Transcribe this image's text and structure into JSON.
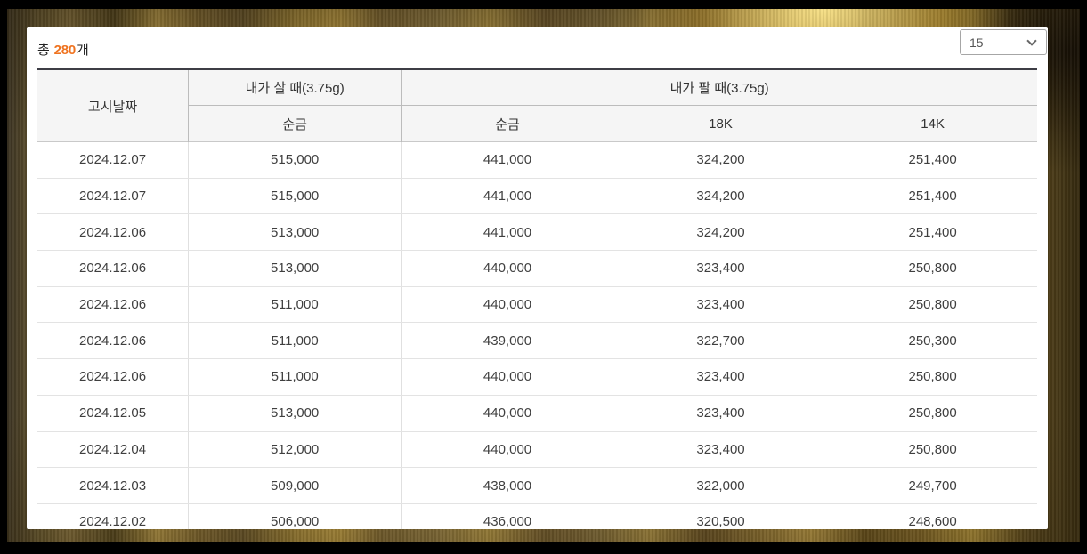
{
  "header": {
    "total_prefix": "총 ",
    "total_count": "280",
    "total_suffix": "개",
    "page_size": {
      "selected_value": "15",
      "chevron_icon": "chevron-down"
    }
  },
  "colors": {
    "accent_orange": "#ef7320",
    "table_top_border": "#3d3d45",
    "header_bg": "#f5f5f5"
  },
  "table": {
    "columns": {
      "date": "고시날짜",
      "buy_group": "내가 살 때(3.75g)",
      "sell_group": "내가 팔 때(3.75g)",
      "buy_pure": "순금",
      "sell_pure": "순금",
      "sell_18k": "18K",
      "sell_14k": "14K"
    },
    "rows": [
      {
        "date": "2024.12.07",
        "buy_pure": "515,000",
        "sell_pure": "441,000",
        "sell_18k": "324,200",
        "sell_14k": "251,400"
      },
      {
        "date": "2024.12.07",
        "buy_pure": "515,000",
        "sell_pure": "441,000",
        "sell_18k": "324,200",
        "sell_14k": "251,400"
      },
      {
        "date": "2024.12.06",
        "buy_pure": "513,000",
        "sell_pure": "441,000",
        "sell_18k": "324,200",
        "sell_14k": "251,400"
      },
      {
        "date": "2024.12.06",
        "buy_pure": "513,000",
        "sell_pure": "440,000",
        "sell_18k": "323,400",
        "sell_14k": "250,800"
      },
      {
        "date": "2024.12.06",
        "buy_pure": "511,000",
        "sell_pure": "440,000",
        "sell_18k": "323,400",
        "sell_14k": "250,800"
      },
      {
        "date": "2024.12.06",
        "buy_pure": "511,000",
        "sell_pure": "439,000",
        "sell_18k": "322,700",
        "sell_14k": "250,300"
      },
      {
        "date": "2024.12.06",
        "buy_pure": "511,000",
        "sell_pure": "440,000",
        "sell_18k": "323,400",
        "sell_14k": "250,800"
      },
      {
        "date": "2024.12.05",
        "buy_pure": "513,000",
        "sell_pure": "440,000",
        "sell_18k": "323,400",
        "sell_14k": "250,800"
      },
      {
        "date": "2024.12.04",
        "buy_pure": "512,000",
        "sell_pure": "440,000",
        "sell_18k": "323,400",
        "sell_14k": "250,800"
      },
      {
        "date": "2024.12.03",
        "buy_pure": "509,000",
        "sell_pure": "438,000",
        "sell_18k": "322,000",
        "sell_14k": "249,700"
      },
      {
        "date": "2024.12.02",
        "buy_pure": "506,000",
        "sell_pure": "436,000",
        "sell_18k": "320,500",
        "sell_14k": "248,600"
      }
    ]
  }
}
